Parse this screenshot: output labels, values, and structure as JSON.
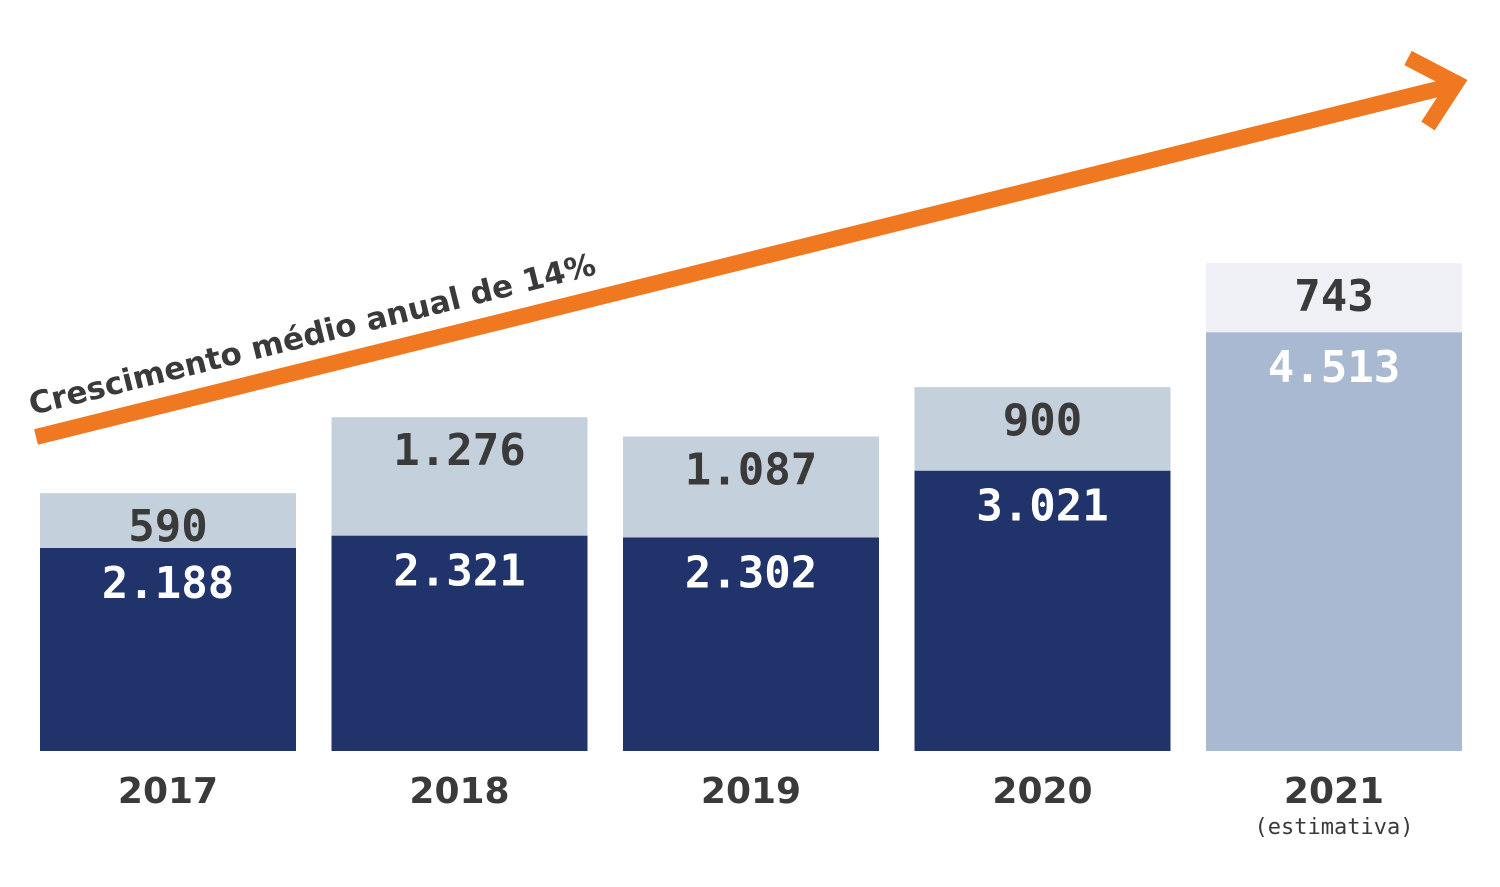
{
  "chart_data": {
    "type": "bar",
    "stacked": true,
    "categories": [
      "2017",
      "2018",
      "2019",
      "2020",
      "2021"
    ],
    "category_notes": [
      "",
      "",
      "",
      "",
      "(estimativa)"
    ],
    "series": [
      {
        "values": [
          2188,
          2321,
          2302,
          3021,
          4513
        ],
        "labels": [
          "2.188",
          "2.321",
          "2.302",
          "3.021",
          "4.513"
        ],
        "colors": [
          "#20336b",
          "#20336b",
          "#20336b",
          "#20336b",
          "#a9b9d1"
        ]
      },
      {
        "values": [
          590,
          1276,
          1087,
          900,
          743
        ],
        "labels": [
          "590",
          "1.276",
          "1.087",
          "900",
          "743"
        ],
        "colors": [
          "#c5d0dd",
          "#c5d0dd",
          "#c5d0dd",
          "#c5d0dd",
          "#eef0f5"
        ]
      }
    ],
    "annotation": {
      "text": "Crescimento médio anual de 14%",
      "color": "#f07820"
    },
    "ylim": [
      0,
      6000
    ],
    "grid": false,
    "legend": "none"
  }
}
